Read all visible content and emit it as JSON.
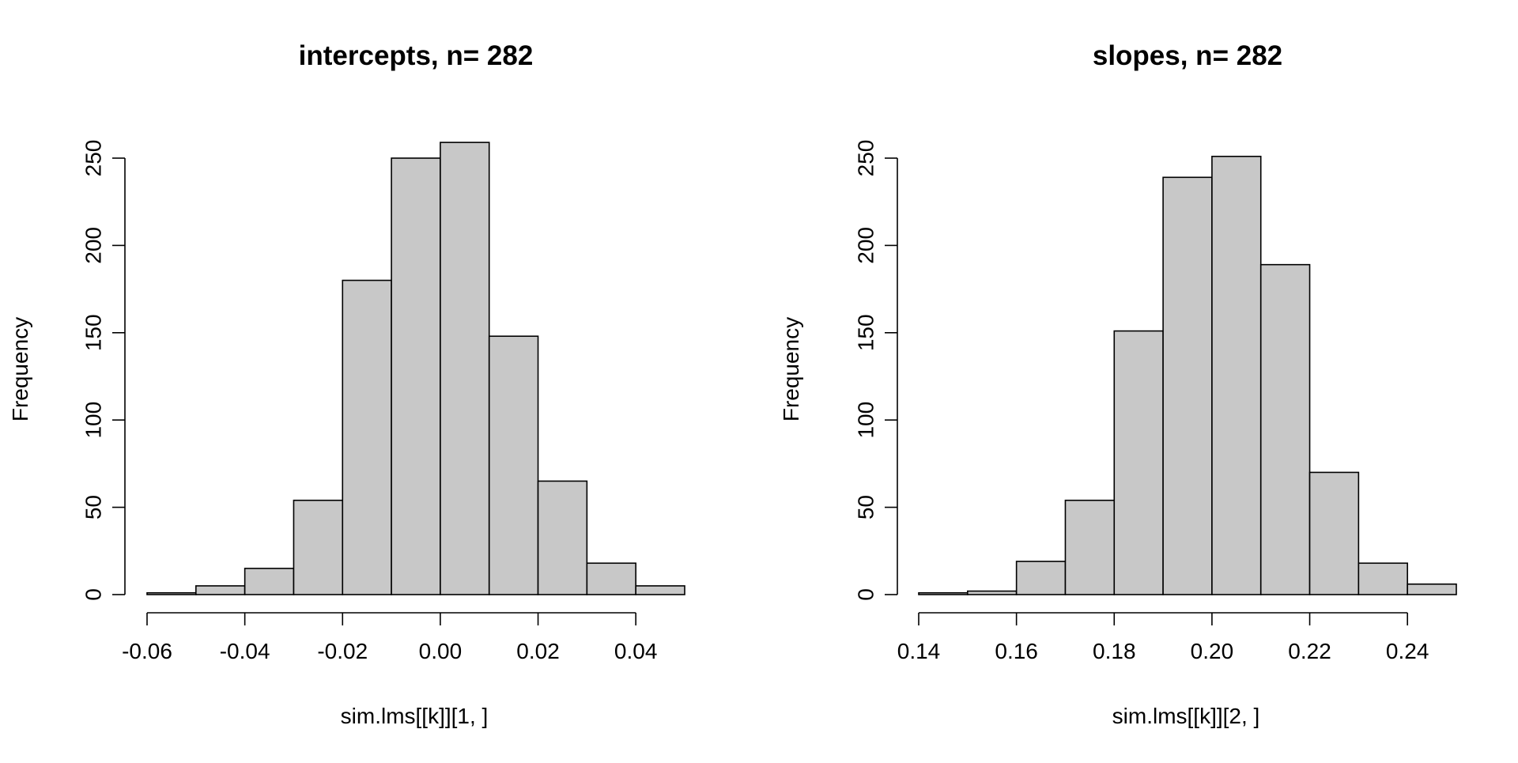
{
  "chart_data": [
    {
      "type": "bar",
      "title": "intercepts, n= 282",
      "xlabel": "sim.lms[[k]][1, ]",
      "ylabel": "Frequency",
      "bin_edges": [
        -0.06,
        -0.05,
        -0.04,
        -0.03,
        -0.02,
        -0.01,
        0.0,
        0.01,
        0.02,
        0.03,
        0.04,
        0.05
      ],
      "values": [
        1,
        5,
        15,
        54,
        180,
        250,
        259,
        148,
        65,
        18,
        5
      ],
      "xlim": [
        -0.06,
        0.05
      ],
      "ylim": [
        0,
        250
      ],
      "xticks": [
        "-0.06",
        "-0.04",
        "-0.02",
        "0.00",
        "0.02",
        "0.04"
      ],
      "xtick_values": [
        -0.06,
        -0.04,
        -0.02,
        0.0,
        0.02,
        0.04
      ],
      "yticks": [
        "0",
        "50",
        "100",
        "150",
        "200",
        "250"
      ],
      "ytick_values": [
        0,
        50,
        100,
        150,
        200,
        250
      ],
      "bar_color": "#c8c8c8",
      "grid": false
    },
    {
      "type": "bar",
      "title": "slopes, n= 282",
      "xlabel": "sim.lms[[k]][2, ]",
      "ylabel": "Frequency",
      "bin_edges": [
        0.14,
        0.15,
        0.16,
        0.17,
        0.18,
        0.19,
        0.2,
        0.21,
        0.22,
        0.23,
        0.24,
        0.25
      ],
      "values": [
        1,
        2,
        19,
        54,
        151,
        239,
        251,
        189,
        70,
        18,
        6
      ],
      "xlim": [
        0.14,
        0.25
      ],
      "ylim": [
        0,
        250
      ],
      "xticks": [
        "0.14",
        "0.16",
        "0.18",
        "0.20",
        "0.22",
        "0.24"
      ],
      "xtick_values": [
        0.14,
        0.16,
        0.18,
        0.2,
        0.22,
        0.24
      ],
      "yticks": [
        "0",
        "50",
        "100",
        "150",
        "200",
        "250"
      ],
      "ytick_values": [
        0,
        50,
        100,
        150,
        200,
        250
      ],
      "bar_color": "#c8c8c8",
      "grid": false
    }
  ]
}
